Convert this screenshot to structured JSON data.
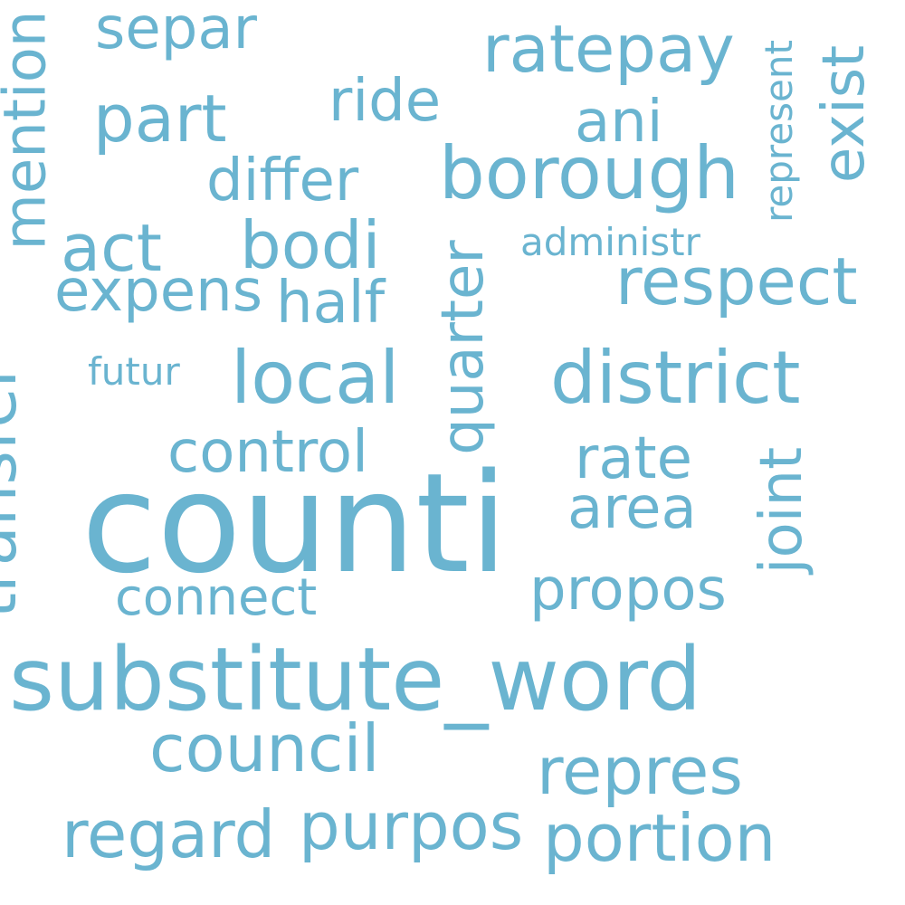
{
  "wordcloud": {
    "color": "#6ab4d0",
    "background": "#ffffff",
    "words": {
      "counti": "counti",
      "substitute_word": "substitute_word",
      "district": "district",
      "local": "local",
      "borough": "borough",
      "part": "part",
      "council": "council",
      "repres": "repres",
      "portion": "portion",
      "regard": "regard",
      "purpos": "purpos",
      "ratepay": "ratepay",
      "respect": "respect",
      "act": "act",
      "bodi": "bodi",
      "propos": "propos",
      "separ": "separ",
      "ride": "ride",
      "ani": "ani",
      "differ": "differ",
      "half": "half",
      "expens": "expens",
      "control": "control",
      "rate": "rate",
      "area": "area",
      "connect": "connect",
      "administr": "administr",
      "futur": "futur",
      "mention": "mention",
      "transfer": "transfer",
      "quarter": "quarter",
      "joint": "joint",
      "exist": "exist",
      "represent": "represent"
    }
  }
}
